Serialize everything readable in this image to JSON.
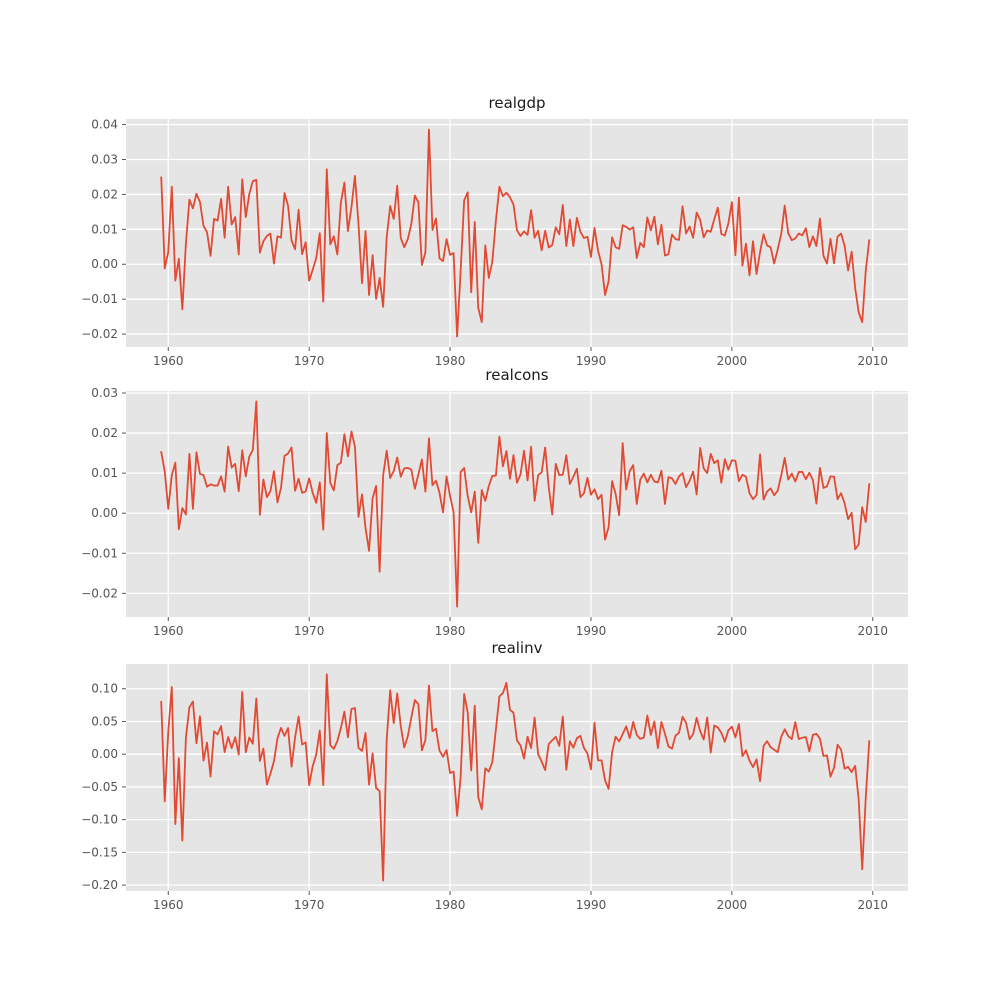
{
  "figure": {
    "background_color": "#ffffff",
    "panel_background_color": "#e5e5e5",
    "grid_color": "#ffffff",
    "line_color": "#e24a33",
    "tick_color": "#555555",
    "tick_label_color": "#555555",
    "title_color": "#1a1a1a"
  },
  "chart_data": [
    {
      "type": "line",
      "title": "realgdp",
      "xlabel": "",
      "ylabel": "",
      "legend": "none",
      "grid": true,
      "x_start": 1959.5,
      "x_step": 0.25,
      "xlim": [
        1957.0,
        2012.5
      ],
      "ylim": [
        -0.0237,
        0.0416
      ],
      "xticks": {
        "values": [
          1960,
          1970,
          1980,
          1990,
          2000,
          2010
        ],
        "labels": [
          "1960",
          "1970",
          "1980",
          "1990",
          "2000",
          "2010"
        ]
      },
      "yticks": {
        "values": [
          0.04,
          0.03,
          0.02,
          0.01,
          0.0,
          -0.01,
          -0.02
        ],
        "labels": [
          "0.04",
          "0.03",
          "0.02",
          "0.01",
          "0.00",
          "−0.01",
          "−0.02"
        ]
      },
      "values": [
        0.0249,
        -0.0012,
        0.0035,
        0.0222,
        -0.0047,
        0.0016,
        -0.0129,
        0.0059,
        0.0185,
        0.016,
        0.0202,
        0.0178,
        0.011,
        0.0092,
        0.0024,
        0.013,
        0.0125,
        0.0187,
        0.0076,
        0.0222,
        0.0114,
        0.0135,
        0.0028,
        0.0243,
        0.0135,
        0.0201,
        0.0238,
        0.0242,
        0.0033,
        0.0066,
        0.0081,
        0.0088,
        0.0002,
        0.008,
        0.0076,
        0.0204,
        0.0168,
        0.0068,
        0.0043,
        0.0156,
        0.0029,
        0.0063,
        -0.0047,
        -0.0016,
        0.0018,
        0.0089,
        -0.0107,
        0.0272,
        0.0057,
        0.008,
        0.0028,
        0.0177,
        0.0234,
        0.0095,
        0.0163,
        0.0253,
        0.0115,
        -0.0054,
        0.0095,
        -0.0088,
        0.0026,
        -0.0099,
        -0.0039,
        -0.0122,
        0.0076,
        0.0167,
        0.013,
        0.0225,
        0.0075,
        0.0049,
        0.0072,
        0.0115,
        0.0197,
        0.0177,
        -0.0002,
        0.0034,
        0.0386,
        0.0098,
        0.0131,
        0.0017,
        0.0009,
        0.0072,
        0.0027,
        0.0032,
        -0.0207,
        -0.0019,
        0.0183,
        0.0206,
        -0.008,
        0.0121,
        -0.0125,
        -0.0166,
        0.0054,
        -0.0039,
        0.0008,
        0.0124,
        0.0222,
        0.0195,
        0.0205,
        0.0192,
        0.0171,
        0.0097,
        0.0081,
        0.0094,
        0.0084,
        0.0155,
        0.0076,
        0.0096,
        0.004,
        0.0096,
        0.0048,
        0.0055,
        0.0106,
        0.0086,
        0.017,
        0.0052,
        0.0128,
        0.0052,
        0.0133,
        0.0093,
        0.0075,
        0.0079,
        0.0021,
        0.0104,
        0.0039,
        0.0,
        -0.0088,
        -0.0049,
        0.0077,
        0.0049,
        0.0044,
        0.0112,
        0.0107,
        0.0099,
        0.0106,
        0.0018,
        0.0061,
        0.0049,
        0.0134,
        0.0097,
        0.0136,
        0.0057,
        0.0113,
        0.0025,
        0.0029,
        0.0085,
        0.0072,
        0.007,
        0.0166,
        0.0088,
        0.0108,
        0.0076,
        0.0148,
        0.0127,
        0.0077,
        0.0097,
        0.0093,
        0.0129,
        0.0162,
        0.0087,
        0.0082,
        0.0117,
        0.0178,
        0.0026,
        0.0191,
        -0.0004,
        0.0059,
        -0.0032,
        0.0066,
        -0.0028,
        0.0035,
        0.0086,
        0.0054,
        0.0049,
        0.0002,
        0.0042,
        0.0086,
        0.0168,
        0.0089,
        0.0069,
        0.0074,
        0.0088,
        0.0083,
        0.0103,
        0.0049,
        0.008,
        0.0052,
        0.0131,
        0.0024,
        0.0002,
        0.0073,
        0.0003,
        0.0079,
        0.0088,
        0.0053,
        -0.0018,
        0.0036,
        -0.0068,
        -0.0138,
        -0.0166,
        -0.0019,
        0.0069
      ]
    },
    {
      "type": "line",
      "title": "realcons",
      "xlabel": "",
      "ylabel": "",
      "legend": "none",
      "grid": true,
      "x_start": 1959.5,
      "x_step": 0.25,
      "xlim": [
        1957.0,
        2012.5
      ],
      "ylim": [
        -0.0259,
        0.0305
      ],
      "xticks": {
        "values": [
          1960,
          1970,
          1980,
          1990,
          2000,
          2010
        ],
        "labels": [
          "1960",
          "1970",
          "1980",
          "1990",
          "2000",
          "2010"
        ]
      },
      "yticks": {
        "values": [
          0.03,
          0.02,
          0.01,
          0.0,
          -0.01,
          -0.02
        ],
        "labels": [
          "0.03",
          "0.02",
          "0.01",
          "0.00",
          "−0.01",
          "−0.02"
        ]
      },
      "values": [
        0.0153,
        0.0104,
        0.0011,
        0.0095,
        0.0126,
        -0.004,
        0.0013,
        -0.0003,
        0.0148,
        0.0011,
        0.0152,
        0.0098,
        0.0095,
        0.0066,
        0.0072,
        0.0069,
        0.0069,
        0.0092,
        0.0054,
        0.0166,
        0.0114,
        0.0123,
        0.0055,
        0.0157,
        0.0092,
        0.0141,
        0.0158,
        0.0279,
        -0.0004,
        0.0084,
        0.004,
        0.0055,
        0.0105,
        0.0027,
        0.0063,
        0.0143,
        0.0149,
        0.0164,
        0.0056,
        0.0086,
        0.0051,
        0.0054,
        0.0087,
        0.0051,
        0.0026,
        0.0077,
        -0.0041,
        0.02,
        0.0075,
        0.0057,
        0.012,
        0.0126,
        0.0197,
        0.0142,
        0.0204,
        0.0166,
        -0.0009,
        0.0047,
        -0.0037,
        -0.0094,
        0.0037,
        0.0068,
        -0.0146,
        0.0094,
        0.0156,
        0.0088,
        0.0105,
        0.0139,
        0.0091,
        0.0112,
        0.0113,
        0.0109,
        0.0061,
        0.0097,
        0.0134,
        0.0054,
        0.0187,
        0.007,
        0.0081,
        0.0051,
        0.0002,
        0.0092,
        0.0043,
        0.0003,
        -0.0233,
        0.0103,
        0.0113,
        0.0043,
        0.0002,
        0.0054,
        -0.0074,
        0.0058,
        0.0031,
        0.0068,
        0.0093,
        0.0094,
        0.0191,
        0.0117,
        0.0155,
        0.0086,
        0.0145,
        0.0076,
        0.0097,
        0.0156,
        0.0082,
        0.0166,
        0.0031,
        0.0095,
        0.0102,
        0.0164,
        0.0066,
        -0.0003,
        0.0123,
        0.0095,
        0.0096,
        0.0145,
        0.0073,
        0.0091,
        0.0111,
        0.004,
        0.005,
        0.0088,
        0.0046,
        0.006,
        0.0035,
        0.0046,
        -0.0066,
        -0.0035,
        0.008,
        0.0048,
        -0.0005,
        0.0175,
        0.0059,
        0.0105,
        0.012,
        0.0023,
        0.0084,
        0.0099,
        0.0077,
        0.0096,
        0.0079,
        0.0077,
        0.0106,
        0.0023,
        0.009,
        0.0087,
        0.0073,
        0.0092,
        0.01,
        0.0065,
        0.0081,
        0.0104,
        0.0047,
        0.0163,
        0.0112,
        0.01,
        0.0148,
        0.0125,
        0.0132,
        0.0076,
        0.0135,
        0.0109,
        0.0132,
        0.0131,
        0.008,
        0.0096,
        0.0091,
        0.005,
        0.0035,
        0.0045,
        0.0147,
        0.0034,
        0.0054,
        0.0062,
        0.0045,
        0.0056,
        0.0094,
        0.0138,
        0.0084,
        0.0099,
        0.0079,
        0.0103,
        0.0103,
        0.0085,
        0.0101,
        0.0083,
        0.0024,
        0.0113,
        0.0063,
        0.0067,
        0.0092,
        0.0091,
        0.0035,
        0.005,
        0.0025,
        -0.0015,
        0.0001,
        -0.009,
        -0.0078,
        0.0015,
        -0.0022,
        0.0073
      ]
    },
    {
      "type": "line",
      "title": "realinv",
      "xlabel": "",
      "ylabel": "",
      "legend": "none",
      "grid": true,
      "x_start": 1959.5,
      "x_step": 0.25,
      "xlim": [
        1957.0,
        2012.5
      ],
      "ylim": [
        -0.209,
        0.1378
      ],
      "xticks": {
        "values": [
          1960,
          1970,
          1980,
          1990,
          2000,
          2010
        ],
        "labels": [
          "1960",
          "1970",
          "1980",
          "1990",
          "2000",
          "2010"
        ]
      },
      "yticks": {
        "values": [
          0.1,
          0.05,
          0.0,
          -0.05,
          -0.1,
          -0.15,
          -0.2
        ],
        "labels": [
          "0.10",
          "0.05",
          "0.00",
          "−0.05",
          "−0.10",
          "−0.15",
          "−0.20"
        ]
      },
      "values": [
        0.0802,
        -0.0721,
        0.0344,
        0.1026,
        -0.1068,
        -0.006,
        -0.132,
        0.0252,
        0.0718,
        0.0805,
        0.0167,
        0.0579,
        -0.0097,
        0.0177,
        -0.0342,
        0.0349,
        0.0303,
        0.0429,
        0.0032,
        0.0262,
        0.0094,
        0.0259,
        -0.0005,
        0.0952,
        0.0031,
        0.0255,
        0.016,
        0.0851,
        -0.0103,
        0.0086,
        -0.0463,
        -0.0299,
        -0.0108,
        0.0244,
        0.0402,
        0.0279,
        0.04,
        -0.019,
        0.0257,
        0.0576,
        0.0148,
        0.0179,
        -0.0472,
        -0.0183,
        -0.0005,
        0.0361,
        -0.0472,
        0.122,
        0.0137,
        0.0082,
        0.0202,
        0.0398,
        0.0651,
        0.0259,
        0.069,
        0.0706,
        0.0097,
        0.005,
        0.0324,
        -0.0464,
        0.0014,
        -0.0516,
        -0.0565,
        -0.1932,
        0.0218,
        0.0977,
        0.0474,
        0.0928,
        0.0429,
        0.0102,
        0.0274,
        0.0561,
        0.0827,
        0.0763,
        0.0059,
        0.0214,
        0.1049,
        0.0352,
        0.0389,
        0.0055,
        -0.004,
        0.0064,
        -0.0287,
        -0.0267,
        -0.0941,
        -0.0347,
        0.0919,
        0.064,
        -0.0248,
        0.0741,
        -0.0656,
        -0.0842,
        -0.0216,
        -0.0265,
        -0.0121,
        0.0373,
        0.0882,
        0.0934,
        0.109,
        0.0678,
        0.0635,
        0.021,
        0.0133,
        -0.0066,
        0.0266,
        0.0094,
        0.0561,
        -0.0002,
        -0.0111,
        -0.0243,
        0.0153,
        0.0212,
        0.0267,
        0.0129,
        0.0575,
        -0.0237,
        0.0197,
        0.01,
        0.0245,
        0.028,
        0.0097,
        0.0011,
        -0.0231,
        0.0482,
        -0.0093,
        -0.0094,
        -0.0401,
        -0.0531,
        0.003,
        0.0267,
        0.0194,
        0.0307,
        0.0426,
        0.0245,
        0.0494,
        0.0295,
        0.0234,
        0.0254,
        0.0591,
        0.0294,
        0.0499,
        0.0093,
        0.0494,
        0.0312,
        0.0118,
        0.0085,
        0.0283,
        0.0329,
        0.0571,
        0.048,
        0.0228,
        0.0307,
        0.0556,
        0.0353,
        0.0225,
        0.056,
        0.0025,
        0.0437,
        0.041,
        0.0328,
        0.019,
        0.0365,
        0.0421,
        0.0257,
        0.0461,
        -0.003,
        0.006,
        -0.0099,
        -0.0197,
        -0.0079,
        -0.0411,
        0.0127,
        0.0199,
        0.0107,
        0.0068,
        0.0031,
        0.0265,
        0.0381,
        0.0277,
        0.0232,
        0.0489,
        0.0231,
        0.0251,
        0.0263,
        0.0043,
        0.0298,
        0.0311,
        0.0237,
        -0.0028,
        -0.0016,
        -0.0344,
        -0.0206,
        0.0143,
        0.0072,
        -0.0221,
        -0.0193,
        -0.0274,
        -0.0178,
        -0.0691,
        -0.1759,
        -0.0675,
        0.0202
      ]
    }
  ]
}
